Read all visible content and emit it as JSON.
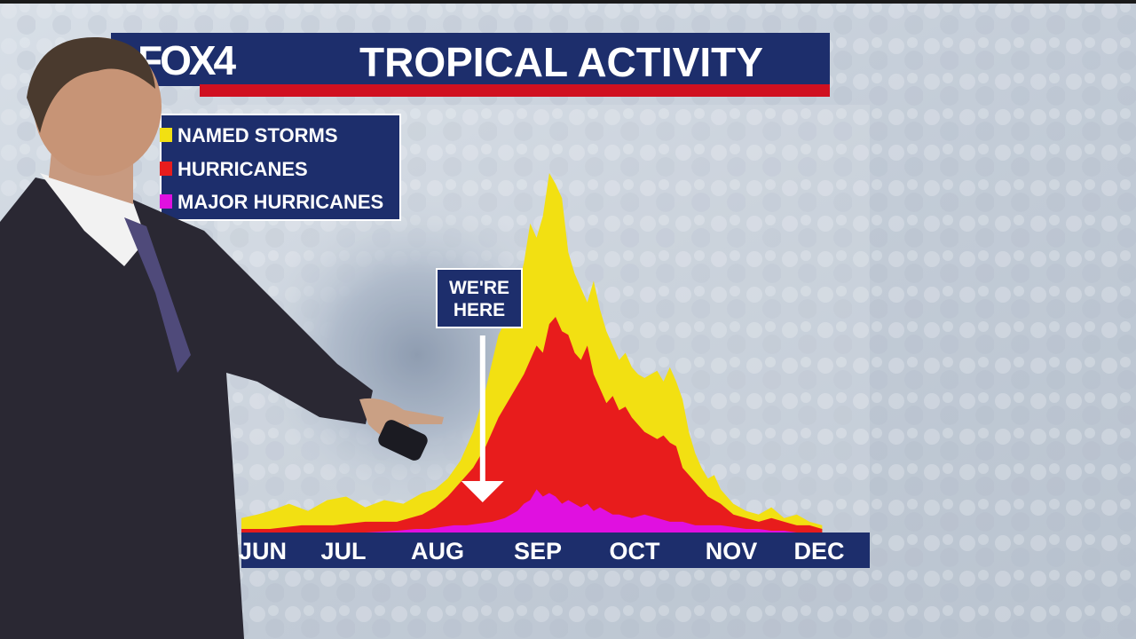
{
  "header": {
    "logo": "FOX4",
    "title": "TROPICAL ACTIVITY"
  },
  "legend": {
    "items": [
      {
        "label": "NAMED STORMS",
        "color": "#f2e012"
      },
      {
        "label": "HURRICANES",
        "color": "#e81c1c"
      },
      {
        "label": "MAJOR HURRICANES",
        "color": "#e010e0"
      }
    ]
  },
  "callout": {
    "line1": "WE'RE",
    "line2": "HERE"
  },
  "colors": {
    "banner": "#1d2e6c",
    "accent_red": "#d01020",
    "named_storms": "#f2e012",
    "hurricanes": "#e81c1c",
    "major_hurricanes": "#e010e0"
  },
  "chart_data": {
    "type": "area",
    "title": "TROPICAL ACTIVITY",
    "x_unit": "day of hurricane season",
    "months": [
      "JUN",
      "JUL",
      "AUG",
      "SEP",
      "OCT",
      "NOV",
      "DEC"
    ],
    "month_start_day": [
      1,
      31,
      62,
      93,
      123,
      154,
      184
    ],
    "x_range": [
      1,
      185
    ],
    "current_day": 77,
    "series": [
      {
        "name": "NAMED STORMS",
        "color": "#f2e012",
        "x": [
          1,
          6,
          10,
          16,
          22,
          28,
          34,
          40,
          46,
          52,
          58,
          62,
          66,
          70,
          74,
          78,
          82,
          86,
          88,
          90,
          92,
          94,
          96,
          98,
          100,
          102,
          104,
          106,
          108,
          110,
          112,
          114,
          116,
          118,
          120,
          122,
          124,
          126,
          128,
          130,
          132,
          134,
          136,
          138,
          140,
          142,
          144,
          146,
          148,
          150,
          152,
          154,
          156,
          158,
          160,
          164,
          168,
          172,
          176,
          180,
          184
        ],
        "values": [
          4,
          5,
          6,
          8,
          6,
          9,
          10,
          7,
          9,
          8,
          11,
          12,
          15,
          20,
          28,
          40,
          55,
          62,
          68,
          75,
          86,
          82,
          88,
          100,
          97,
          93,
          78,
          72,
          68,
          64,
          70,
          62,
          56,
          52,
          48,
          50,
          46,
          44,
          43,
          44,
          45,
          42,
          46,
          42,
          37,
          28,
          22,
          18,
          15,
          16,
          12,
          10,
          8,
          7,
          6,
          5,
          7,
          4,
          5,
          3,
          2
        ]
      },
      {
        "name": "HURRICANES",
        "color": "#e81c1c",
        "x": [
          1,
          10,
          20,
          30,
          40,
          50,
          58,
          62,
          66,
          70,
          74,
          78,
          82,
          86,
          90,
          94,
          96,
          98,
          100,
          102,
          104,
          106,
          108,
          110,
          112,
          114,
          116,
          118,
          120,
          122,
          124,
          126,
          128,
          130,
          132,
          134,
          136,
          138,
          140,
          144,
          148,
          152,
          156,
          160,
          164,
          168,
          172,
          176,
          180,
          184
        ],
        "values": [
          1,
          1,
          2,
          2,
          3,
          3,
          5,
          7,
          10,
          14,
          18,
          24,
          32,
          38,
          44,
          52,
          50,
          58,
          60,
          56,
          55,
          50,
          48,
          52,
          44,
          40,
          36,
          38,
          34,
          35,
          32,
          30,
          28,
          27,
          26,
          27,
          25,
          24,
          18,
          14,
          10,
          8,
          5,
          4,
          3,
          4,
          3,
          2,
          2,
          1
        ]
      },
      {
        "name": "MAJOR HURRICANES",
        "color": "#e010e0",
        "x": [
          1,
          20,
          40,
          50,
          56,
          60,
          64,
          68,
          72,
          76,
          80,
          84,
          88,
          90,
          92,
          94,
          96,
          98,
          100,
          102,
          104,
          106,
          108,
          110,
          112,
          114,
          116,
          118,
          120,
          124,
          128,
          132,
          136,
          140,
          144,
          148,
          152,
          156,
          160,
          164,
          168,
          172,
          176,
          180,
          184
        ],
        "values": [
          0,
          0,
          0,
          0.5,
          1,
          1,
          1.5,
          2,
          2,
          2.5,
          3,
          4,
          6,
          8,
          9,
          12,
          10,
          11,
          10,
          8,
          9,
          8,
          7,
          8,
          6,
          7,
          6,
          5,
          5,
          4,
          5,
          4,
          3,
          3,
          2,
          2,
          2,
          1.5,
          1,
          1,
          0.5,
          0.5,
          0,
          0,
          0
        ]
      }
    ],
    "ylim": [
      0,
      100
    ],
    "grid": false,
    "legend_position": "top-left"
  }
}
